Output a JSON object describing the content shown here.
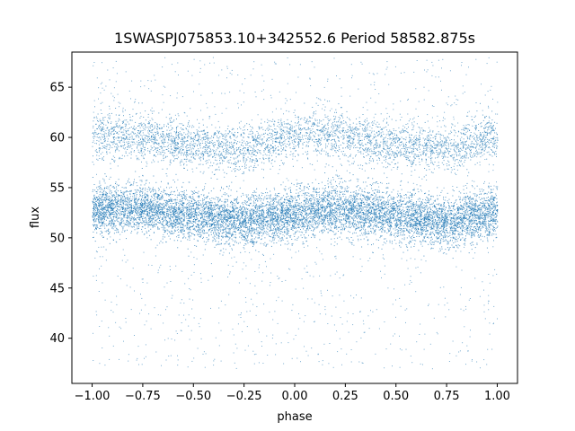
{
  "chart_data": {
    "type": "scatter",
    "title": "1SWASPJ075853.10+342552.6 Period 58582.875s",
    "xlabel": "phase",
    "ylabel": "flux",
    "xlim": [
      -1.1,
      1.1
    ],
    "ylim": [
      35.5,
      68.5
    ],
    "xticks": [
      -1.0,
      -0.75,
      -0.5,
      -0.25,
      0.0,
      0.25,
      0.5,
      0.75,
      1.0
    ],
    "xtick_labels": [
      "−1.00",
      "−0.75",
      "−0.50",
      "−0.25",
      "0.00",
      "0.25",
      "0.50",
      "0.75",
      "1.00"
    ],
    "yticks": [
      40,
      45,
      50,
      55,
      60,
      65
    ],
    "ytick_labels": [
      "40",
      "45",
      "50",
      "55",
      "60",
      "65"
    ],
    "grid": false,
    "marker_color": "#1f77b4",
    "series": [
      {
        "description_of_distribution": "phase-folded light curve, x from -1.0 to 1.0",
        "bands": [
          {
            "label": "lower band",
            "phase": [
              -1.0,
              -0.75,
              -0.5,
              -0.25,
              0.0,
              0.25,
              0.5,
              0.75,
              1.0
            ],
            "flux_center": [
              52.8,
              53.0,
              52.2,
              51.6,
              52.4,
              53.0,
              52.2,
              51.6,
              52.6
            ],
            "flux_halfwidth": 1.6
          },
          {
            "label": "upper band",
            "phase": [
              -1.0,
              -0.75,
              -0.5,
              -0.25,
              0.0,
              0.25,
              0.5,
              0.75,
              1.0
            ],
            "flux_center": [
              60.4,
              60.2,
              59.2,
              58.8,
              60.4,
              60.2,
              59.2,
              58.8,
              60.2
            ],
            "flux_halfwidth": 1.4
          }
        ],
        "scatter_range": [
          37,
          68
        ]
      }
    ]
  }
}
